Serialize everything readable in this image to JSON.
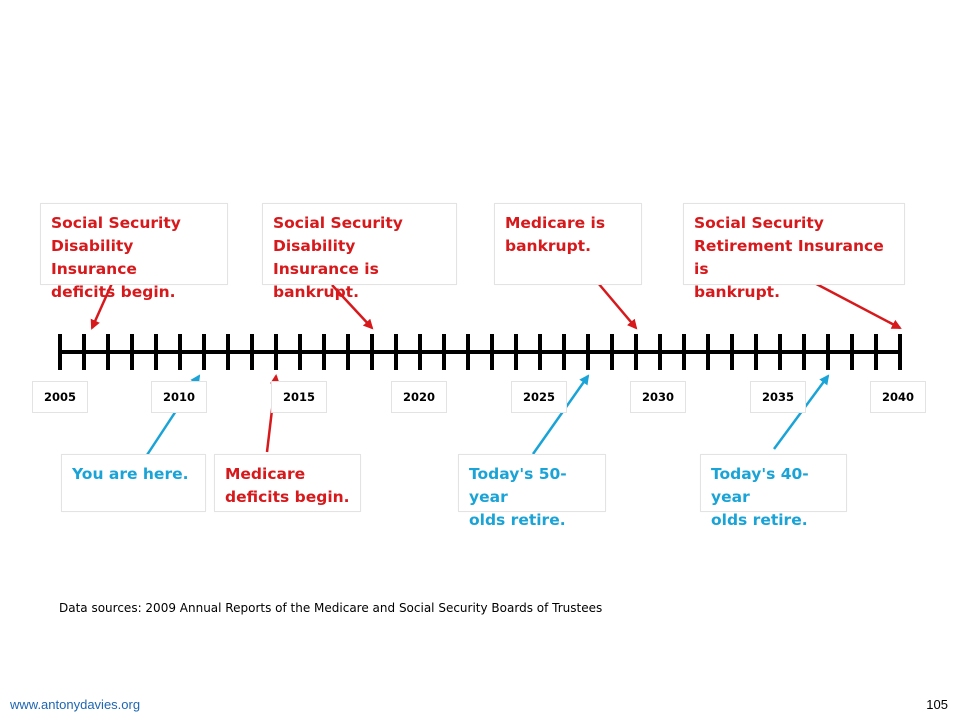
{
  "events_above": [
    {
      "text": "Social Security\nDisability Insurance\ndeficits begin.",
      "year": 2008
    },
    {
      "text": "Social Security\nDisability Insurance is\nbankrupt.",
      "year": 2018
    },
    {
      "text": "Medicare is\nbankrupt.",
      "year": 2029
    },
    {
      "text": "Social Security\nRetirement Insurance is\nbankrupt.",
      "year": 2040
    }
  ],
  "events_below": [
    {
      "text": "You are here.",
      "year": 2011,
      "color": "blue"
    },
    {
      "text": "Medicare\ndeficits begin.",
      "year": 2014,
      "color": "red"
    },
    {
      "text": "Today's 50-year\nolds retire.",
      "year": 2027,
      "color": "blue"
    },
    {
      "text": "Today's 40-year\nolds retire.",
      "year": 2037,
      "color": "blue"
    }
  ],
  "year_labels": [
    "2005",
    "2010",
    "2015",
    "2020",
    "2025",
    "2030",
    "2035",
    "2040"
  ],
  "timeline": {
    "start_year": 2005,
    "end_year": 2040
  },
  "colors": {
    "red": "#d7191c",
    "blue": "#1aa3d6",
    "axis": "#000000"
  },
  "source_note": "Data sources: 2009 Annual Reports of the Medicare and Social Security Boards of Trustees",
  "footer": {
    "website": "www.antonydavies.org",
    "page_number": "105"
  }
}
